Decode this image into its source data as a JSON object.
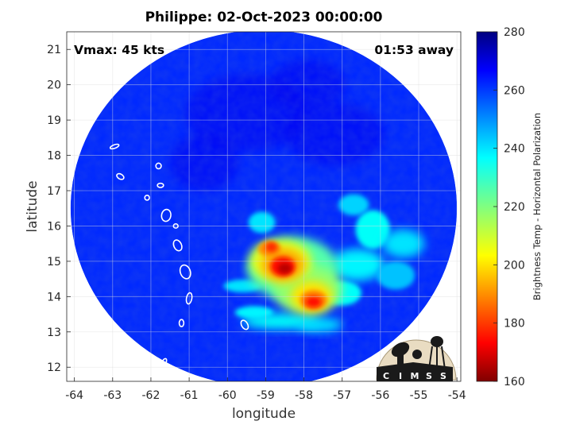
{
  "title": "Philippe: 02-Oct-2023 00:00:00",
  "storm": "Philippe",
  "annotations": {
    "vmax": "Vmax: 45 kts",
    "time_away": "01:53 away"
  },
  "axes": {
    "xlabel": "longitude",
    "ylabel": "latitude",
    "xlim": [
      -64.2,
      -53.9
    ],
    "ylim": [
      11.6,
      21.5
    ],
    "xticks": [
      -64,
      -63,
      -62,
      -61,
      -60,
      -59,
      -58,
      -57,
      -56,
      -55,
      -54
    ],
    "yticks": [
      12,
      13,
      14,
      15,
      16,
      17,
      18,
      19,
      20,
      21
    ],
    "grid": true
  },
  "colorbar": {
    "label": "Brightness Temp - Horizontal Polarization",
    "range": [
      160,
      280
    ],
    "ticks": [
      160,
      180,
      200,
      220,
      240,
      260,
      280
    ],
    "colormap": "jet"
  },
  "swath": {
    "center_lon": -59.05,
    "center_lat": 16.5,
    "radius_lon": 5.05,
    "radius_lat": 5.05,
    "background_tb": 262
  },
  "features": [
    {
      "name": "deep-convection-core",
      "lon": -58.55,
      "lat": 14.85,
      "tb": 168
    },
    {
      "name": "secondary-core",
      "lon": -57.75,
      "lat": 13.85,
      "tb": 172
    },
    {
      "name": "north-core",
      "lon": -58.85,
      "lat": 15.4,
      "tb": 180
    },
    {
      "name": "rainband-east",
      "lon": -56.2,
      "lat": 15.9,
      "tb": 232
    },
    {
      "name": "rainband-south",
      "lon": -58.6,
      "lat": 13.3,
      "tb": 236
    }
  ],
  "islands": [
    {
      "name": "island",
      "lon": -62.95,
      "lat": 18.25
    },
    {
      "name": "island",
      "lon": -62.8,
      "lat": 17.4
    },
    {
      "name": "island",
      "lon": -61.8,
      "lat": 17.7
    },
    {
      "name": "island",
      "lon": -61.75,
      "lat": 17.15
    },
    {
      "name": "island",
      "lon": -62.1,
      "lat": 16.8
    },
    {
      "name": "island",
      "lon": -61.6,
      "lat": 16.3
    },
    {
      "name": "island",
      "lon": -61.35,
      "lat": 16.0
    },
    {
      "name": "island",
      "lon": -61.3,
      "lat": 15.45
    },
    {
      "name": "island",
      "lon": -61.1,
      "lat": 14.7
    },
    {
      "name": "island",
      "lon": -61.0,
      "lat": 13.95
    },
    {
      "name": "island",
      "lon": -61.2,
      "lat": 13.25
    },
    {
      "name": "island",
      "lon": -59.55,
      "lat": 13.2
    },
    {
      "name": "island",
      "lon": -61.65,
      "lat": 12.15
    }
  ],
  "logo": {
    "text": "CIMSS",
    "letters": [
      "C",
      "I",
      "M",
      "S",
      "S"
    ]
  },
  "colors": {
    "background": "#ffffff",
    "grid": "#dddddd",
    "island_outline": "#ffffff",
    "outside_swath": "#ffffff"
  }
}
